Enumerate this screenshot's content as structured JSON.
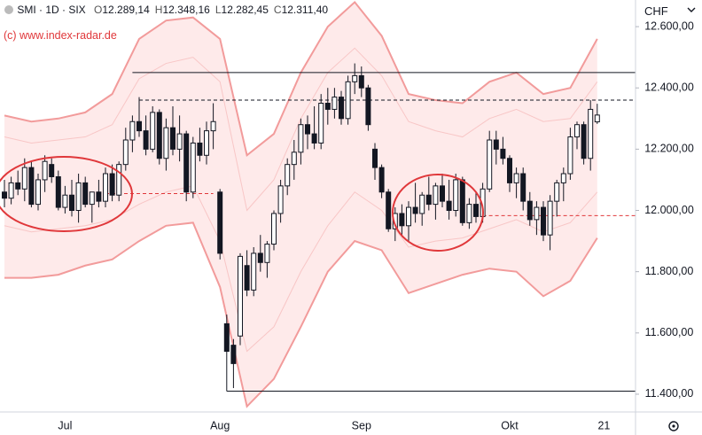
{
  "chart_data": {
    "type": "candlestick",
    "symbol": "SMI · 1D · SIX",
    "ohlc": [
      {
        "label": "O",
        "value": "12.289,14"
      },
      {
        "label": "H",
        "value": "12.348,16"
      },
      {
        "label": "L",
        "value": "12.282,45"
      },
      {
        "label": "C",
        "value": "12.311,40"
      }
    ],
    "watermark": "(c) www.index-radar.de",
    "currency": "CHF",
    "ylim": [
      11342,
      12687
    ],
    "yticks": [
      {
        "value": 12600,
        "label": "12.600,00"
      },
      {
        "value": 12400,
        "label": "12.400,00"
      },
      {
        "value": 12200,
        "label": "12.200,00"
      },
      {
        "value": 12000,
        "label": "12.000,00"
      },
      {
        "value": 11800,
        "label": "11.800,00"
      },
      {
        "value": 11600,
        "label": "11.600,00"
      },
      {
        "value": 11400,
        "label": "11.400,00"
      }
    ],
    "x_ticks": [
      {
        "index": 9,
        "label": "Jul"
      },
      {
        "index": 32,
        "label": "Aug"
      },
      {
        "index": 53,
        "label": "Sep"
      },
      {
        "index": 75,
        "label": "Okt"
      },
      {
        "index": 89,
        "label": "21"
      }
    ],
    "open": [
      12060,
      12040,
      12090,
      12070,
      12140,
      12020,
      12100,
      12150,
      12110,
      12010,
      12050,
      12000,
      12090,
      12020,
      12060,
      12030,
      12120,
      12050,
      12150,
      12230,
      12290,
      12260,
      12200,
      12320,
      12170,
      12270,
      12200,
      12250,
      12060,
      12220,
      12180,
      12260,
      12060,
      11630,
      11560,
      11590,
      11820,
      11740,
      11860,
      11830,
      11890,
      11990,
      12080,
      12150,
      12190,
      12280,
      12250,
      12220,
      12350,
      12330,
      12370,
      12300,
      12420,
      12440,
      12400,
      12200,
      12140,
      12060,
      11940,
      11990,
      11950,
      12010,
      11990,
      12050,
      12020,
      12080,
      12030,
      12000,
      12100,
      11960,
      12020,
      11980,
      12070,
      12230,
      12200,
      12170,
      12090,
      12120,
      12030,
      11970,
      12010,
      11920,
      12030,
      12090,
      12120,
      12240,
      12280,
      12170,
      12289.14
    ],
    "high": [
      12100,
      12110,
      12130,
      12170,
      12160,
      12120,
      12180,
      12170,
      12130,
      12080,
      12100,
      12120,
      12110,
      12060,
      12100,
      12140,
      12150,
      12160,
      12270,
      12310,
      12370,
      12310,
      12340,
      12330,
      12300,
      12340,
      12310,
      12260,
      12240,
      12270,
      12290,
      12350,
      12070,
      11660,
      11580,
      11860,
      11870,
      11880,
      11920,
      11900,
      12000,
      12100,
      12170,
      12230,
      12300,
      12310,
      12340,
      12380,
      12400,
      12400,
      12390,
      12440,
      12480,
      12470,
      12410,
      12220,
      12150,
      12070,
      12010,
      12020,
      12030,
      12090,
      12060,
      12110,
      12090,
      12120,
      12100,
      12120,
      12110,
      12040,
      12060,
      12090,
      12260,
      12260,
      12240,
      12180,
      12140,
      12140,
      12060,
      12030,
      12030,
      12050,
      12100,
      12140,
      12270,
      12290,
      12290,
      12360,
      12348.16
    ],
    "low": [
      12010,
      12020,
      12050,
      12030,
      12010,
      12000,
      12060,
      12090,
      12000,
      11990,
      11980,
      11960,
      12010,
      11960,
      12010,
      12010,
      12030,
      12030,
      12130,
      12190,
      12240,
      12180,
      12190,
      12150,
      12130,
      12180,
      12160,
      12030,
      12040,
      12160,
      12150,
      12200,
      11840,
      11410,
      11420,
      11560,
      11720,
      11720,
      11800,
      11780,
      11870,
      11960,
      12050,
      12100,
      12150,
      12200,
      12200,
      12200,
      12280,
      12300,
      12280,
      12280,
      12380,
      12370,
      12260,
      12100,
      12040,
      11930,
      11900,
      11920,
      11900,
      11960,
      11950,
      12000,
      11970,
      12010,
      11970,
      11980,
      11950,
      11940,
      11960,
      11960,
      12060,
      12150,
      12150,
      12060,
      12040,
      12000,
      11950,
      11920,
      11900,
      11870,
      11980,
      12030,
      12100,
      12200,
      12150,
      12130,
      12282.45
    ],
    "close": [
      12040,
      12090,
      12070,
      12140,
      12020,
      12100,
      12160,
      12110,
      12010,
      12050,
      12000,
      12090,
      12020,
      12060,
      12030,
      12120,
      12050,
      12150,
      12230,
      12290,
      12260,
      12200,
      12320,
      12170,
      12270,
      12200,
      12250,
      12060,
      12220,
      12180,
      12260,
      12290,
      11860,
      11540,
      11500,
      11850,
      11740,
      11860,
      11830,
      11890,
      11990,
      12080,
      12150,
      12190,
      12280,
      12250,
      12220,
      12350,
      12330,
      12370,
      12300,
      12420,
      12440,
      12400,
      12280,
      12140,
      12060,
      11940,
      11990,
      11950,
      12010,
      11990,
      12050,
      12020,
      12080,
      12030,
      12000,
      12100,
      11960,
      12020,
      11980,
      12070,
      12230,
      12200,
      12170,
      12090,
      12120,
      12030,
      11970,
      12010,
      11920,
      12030,
      12090,
      12120,
      12240,
      12280,
      12170,
      12330,
      12311.4
    ],
    "bands": {
      "x": [
        0,
        4,
        8,
        12,
        16,
        20,
        24,
        28,
        32,
        36,
        40,
        44,
        48,
        52,
        56,
        60,
        64,
        68,
        72,
        76,
        80,
        84,
        88
      ],
      "upper": [
        12310,
        12290,
        12300,
        12320,
        12380,
        12560,
        12620,
        12630,
        12560,
        12180,
        12250,
        12450,
        12600,
        12680,
        12570,
        12380,
        12360,
        12350,
        12420,
        12450,
        12380,
        12400,
        12560
      ],
      "upper_inner": [
        12240,
        12220,
        12230,
        12240,
        12280,
        12430,
        12480,
        12500,
        12420,
        12000,
        12100,
        12300,
        12450,
        12530,
        12440,
        12290,
        12260,
        12240,
        12300,
        12330,
        12290,
        12300,
        12420
      ],
      "lower_inner": [
        11950,
        11930,
        11940,
        11950,
        11970,
        12020,
        12060,
        12080,
        11900,
        11540,
        11620,
        11800,
        11950,
        12060,
        12000,
        11880,
        11900,
        11910,
        11940,
        11970,
        11930,
        11960,
        12060
      ],
      "lower": [
        11780,
        11780,
        11790,
        11820,
        11840,
        11900,
        11950,
        11960,
        11750,
        11360,
        11450,
        11620,
        11800,
        11900,
        11870,
        11730,
        11760,
        11790,
        11810,
        11800,
        11720,
        11770,
        11910
      ]
    },
    "levels": [
      {
        "value": 12450,
        "start": 19,
        "color": "#131722",
        "dash": false
      },
      {
        "value": 12360,
        "start": 20,
        "color": "#131722",
        "dash": true
      },
      {
        "value": 11410,
        "start": 33,
        "color": "#131722",
        "dash": false
      },
      {
        "value": 12055,
        "start": 15,
        "end": 31,
        "color": "#e0373a",
        "dash": true
      },
      {
        "value": 11983,
        "start": 71,
        "color": "#e0373a",
        "dash": true
      }
    ],
    "band_color": "#f29b9b",
    "band_fill": "#fde3e3",
    "up_color": "#ffffff",
    "down_color": "#131722"
  }
}
